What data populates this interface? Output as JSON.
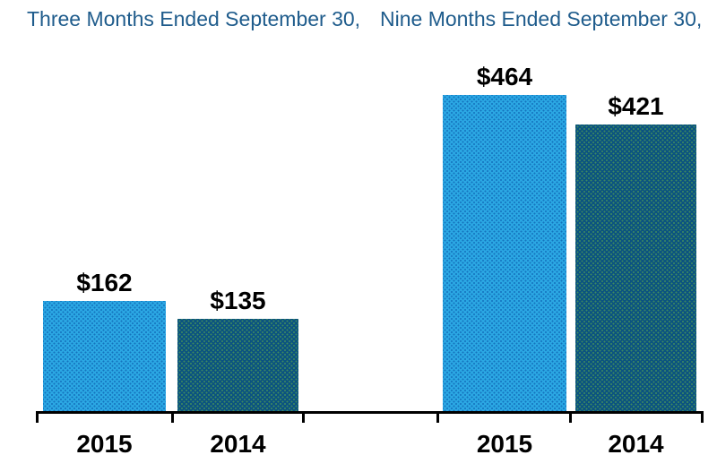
{
  "chart_data": {
    "type": "bar",
    "unit": "USD",
    "groups": [
      {
        "title": "Three Months Ended September 30,",
        "bars": [
          {
            "category": "2015",
            "value": 162,
            "label": "$162",
            "series": "2015"
          },
          {
            "category": "2014",
            "value": 135,
            "label": "$135",
            "series": "2014"
          }
        ]
      },
      {
        "title": "Nine Months Ended September 30,",
        "bars": [
          {
            "category": "2015",
            "value": 464,
            "label": "$464",
            "series": "2015"
          },
          {
            "category": "2014",
            "value": 421,
            "label": "$421",
            "series": "2014"
          }
        ]
      }
    ],
    "ylim": [
      0,
      475
    ],
    "axis": {
      "x_axis_visible": true,
      "y_axis_visible": false,
      "grid": false,
      "legend": "none"
    },
    "colors": {
      "series_2015": "#2BA7E3",
      "series_2015_dot": "#1473BE",
      "series_2014": "#0B5380",
      "series_2014_dot": "#3E8A60",
      "group_title": "#1F5C8C",
      "value_label": "#000000",
      "year_label": "#000000",
      "axis": "#000000",
      "background": "#FFFFFF"
    }
  }
}
